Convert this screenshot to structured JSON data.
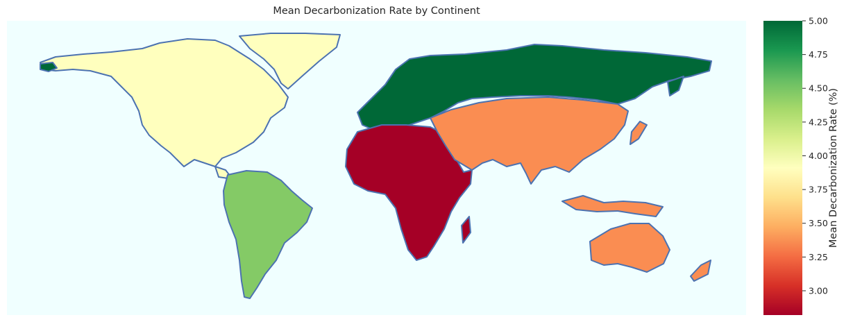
{
  "title": "Mean Decarbonization Rate by Continent",
  "colors": {
    "ocean": "#f0ffff",
    "border": "#4c72b0",
    "north_america": "#ffffbe",
    "south_america": "#84ca66",
    "europe": "#006837",
    "africa": "#a50026",
    "asia": "#fa8d52",
    "oceania": "#fa8d52"
  },
  "chart_data": {
    "type": "heatmap",
    "title": "Mean Decarbonization Rate by Continent",
    "colormap": "RdYlGn",
    "colorbar": {
      "label": "Mean Decarbonization Rate (%)",
      "range": [
        2.82,
        5.0
      ],
      "ticks": [
        "3.00",
        "3.25",
        "3.50",
        "3.75",
        "4.00",
        "4.25",
        "4.50",
        "4.75",
        "5.00"
      ]
    },
    "regions": [
      {
        "name": "North America",
        "value": 3.85
      },
      {
        "name": "South America",
        "value": 4.4
      },
      {
        "name": "Europe",
        "value": 5.0
      },
      {
        "name": "Africa",
        "value": 2.82
      },
      {
        "name": "Asia",
        "value": 3.45
      },
      {
        "name": "Oceania",
        "value": 3.45
      }
    ]
  }
}
